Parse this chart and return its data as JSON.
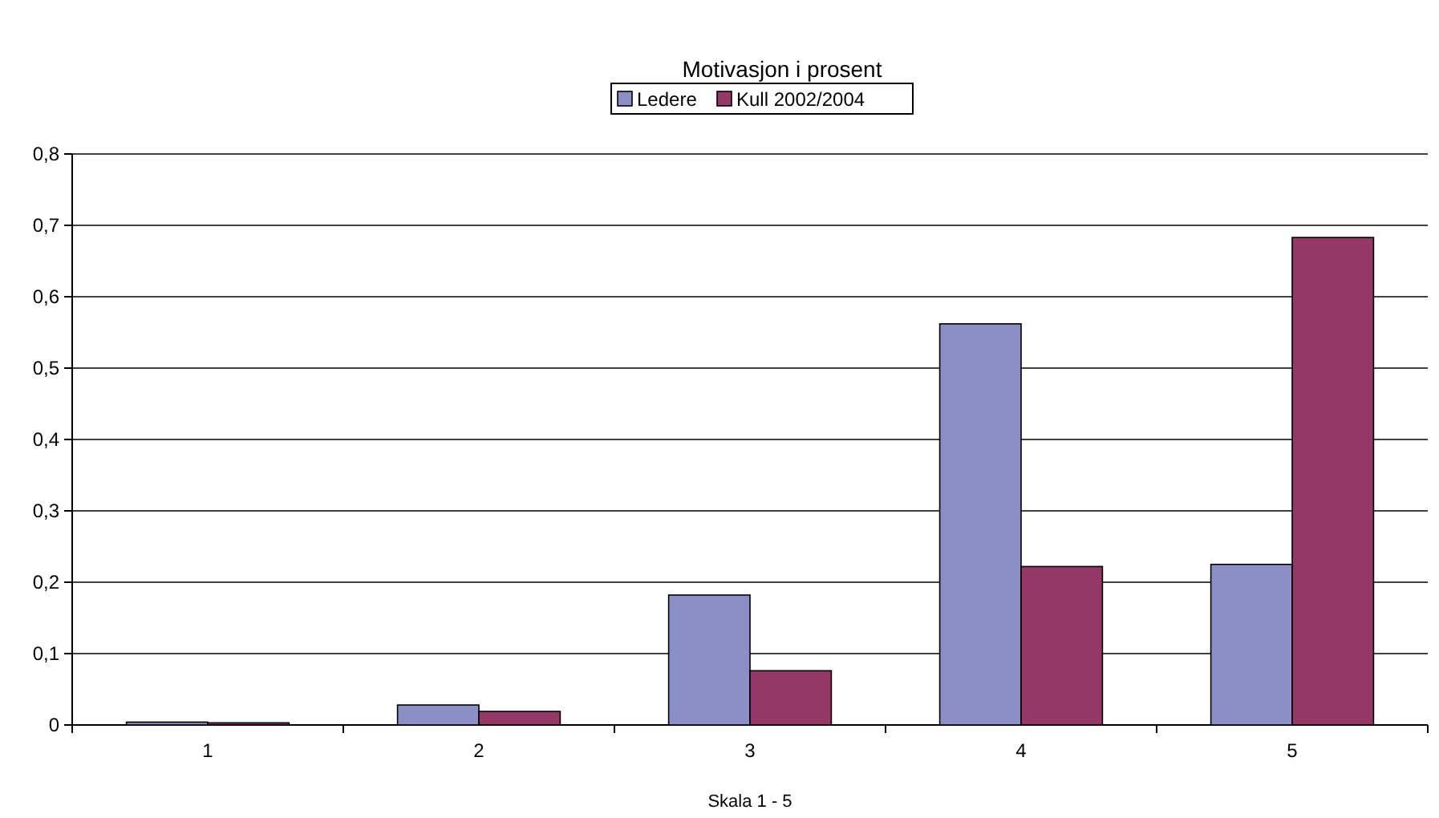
{
  "chart_data": {
    "type": "bar",
    "title": "Motivasjon i prosent",
    "xlabel": "Skala 1 - 5",
    "categories": [
      "1",
      "2",
      "3",
      "4",
      "5"
    ],
    "series": [
      {
        "name": "Ledere",
        "color": "#8c8fc6",
        "values": [
          0.004,
          0.028,
          0.182,
          0.562,
          0.225
        ]
      },
      {
        "name": "Kull 2002/2004",
        "color": "#953868",
        "values": [
          0.003,
          0.019,
          0.076,
          0.222,
          0.683
        ]
      }
    ],
    "ylim": [
      0,
      0.8
    ],
    "yticks": [
      0,
      {
        "value": 0.1,
        "label": "0,1"
      },
      {
        "value": 0.2,
        "label": "0,2"
      },
      {
        "value": 0.3,
        "label": "0,3"
      },
      {
        "value": 0.4,
        "label": "0,4"
      },
      {
        "value": 0.5,
        "label": "0,5"
      },
      {
        "value": 0.6,
        "label": "0,6"
      },
      {
        "value": 0.7,
        "label": "0,7"
      },
      {
        "value": 0.8,
        "label": "0,8"
      }
    ],
    "grid": "y",
    "legend": "top"
  }
}
